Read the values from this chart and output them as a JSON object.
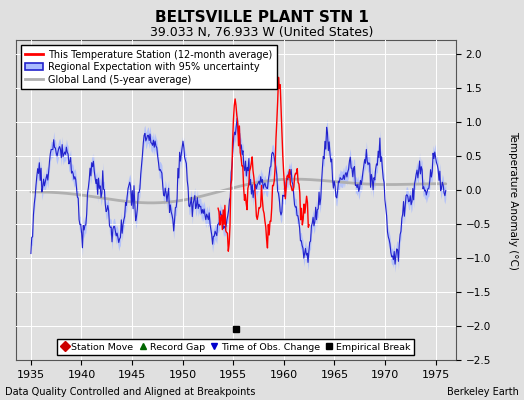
{
  "title": "BELTSVILLE PLANT STN 1",
  "subtitle": "39.033 N, 76.933 W (United States)",
  "xlabel_left": "Data Quality Controlled and Aligned at Breakpoints",
  "xlabel_right": "Berkeley Earth",
  "ylabel": "Temperature Anomaly (°C)",
  "xlim": [
    1933.5,
    1977
  ],
  "ylim": [
    -2.5,
    2.2
  ],
  "yticks": [
    -2.5,
    -2,
    -1.5,
    -1,
    -0.5,
    0,
    0.5,
    1,
    1.5,
    2
  ],
  "xticks": [
    1935,
    1940,
    1945,
    1950,
    1955,
    1960,
    1965,
    1970,
    1975
  ],
  "bg_color": "#e0e0e0",
  "plot_bg_color": "#e0e0e0",
  "grid_color": "#ffffff",
  "regional_color": "#2222cc",
  "regional_fill_color": "#aabbff",
  "station_color": "#ff0000",
  "global_color": "#b0b0b0",
  "empirical_x": 1955.3,
  "empirical_y": -2.05,
  "legend_entries": [
    "This Temperature Station (12-month average)",
    "Regional Expectation with 95% uncertainty",
    "Global Land (5-year average)"
  ],
  "sym_legend": [
    "Station Move",
    "Record Gap",
    "Time of Obs. Change",
    "Empirical Break"
  ]
}
